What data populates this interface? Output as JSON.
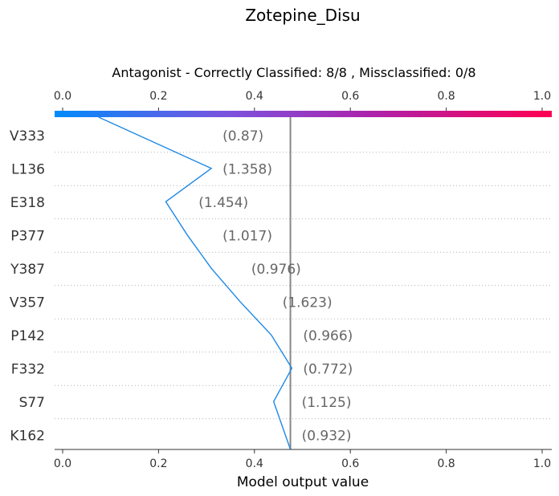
{
  "chart_data": {
    "type": "line",
    "plot_kind": "shap-decision-plot",
    "title": "Zotepine_Disu",
    "subtitle": "Antagonist - Correctly Classified: 8/8 , Missclassified: 0/8",
    "xlabel": "Model output value",
    "xlim": [
      0.0,
      1.0
    ],
    "x_ticks": [
      "0.0",
      "0.2",
      "0.4",
      "0.6",
      "0.8",
      "1.0"
    ],
    "x_tick_values": [
      0.0,
      0.2,
      0.4,
      0.6,
      0.8,
      1.0
    ],
    "base_value": 0.475,
    "colorbar": {
      "colors": [
        "#008bfb",
        "#7c52de",
        "#b020a8",
        "#ff0052"
      ]
    },
    "line_color": "#1e88e5",
    "features": [
      {
        "name": "V333",
        "label": "(0.87)",
        "path_x": 0.075
      },
      {
        "name": "L136",
        "label": "(1.358)",
        "path_x": 0.31
      },
      {
        "name": "E318",
        "label": "(1.454)",
        "path_x": 0.215
      },
      {
        "name": "P377",
        "label": "(1.017)",
        "path_x": 0.26
      },
      {
        "name": "Y387",
        "label": "(0.976)",
        "path_x": 0.31
      },
      {
        "name": "V357",
        "label": "(1.623)",
        "path_x": 0.37
      },
      {
        "name": "P142",
        "label": "(0.966)",
        "path_x": 0.435
      },
      {
        "name": "F332",
        "label": "(0.772)",
        "path_x": 0.478
      },
      {
        "name": "S77",
        "label": "(1.125)",
        "path_x": 0.44
      },
      {
        "name": "K162",
        "label": "(0.932)",
        "path_x": 0.475
      }
    ]
  }
}
